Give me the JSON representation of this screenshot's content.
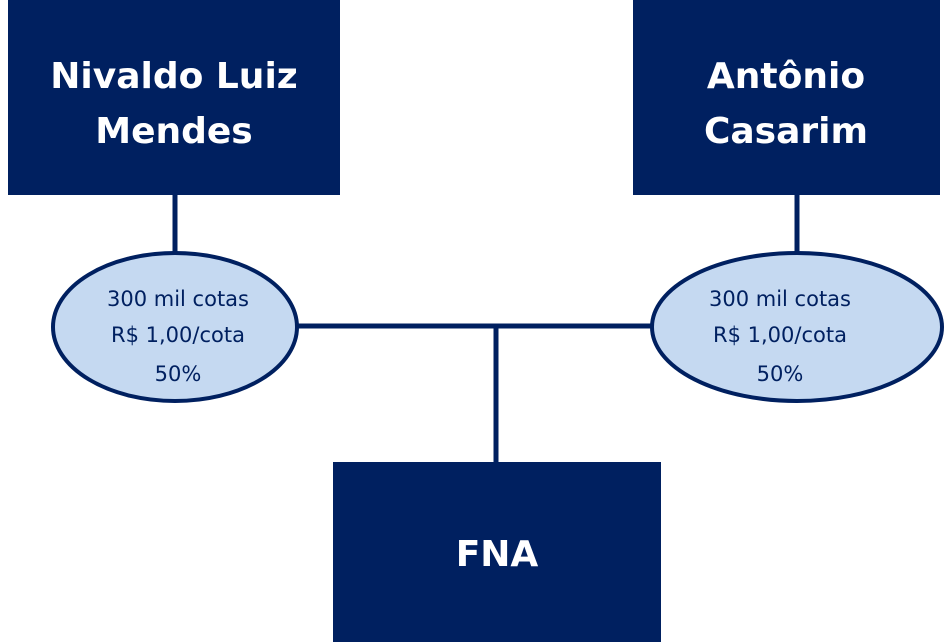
{
  "nodes": [
    {
      "lines": [
        "Nivaldo Luiz",
        "Mendes"
      ]
    },
    {
      "lines": [
        "Antônio",
        "Casarim"
      ]
    },
    {
      "lines": [
        "FNA"
      ]
    }
  ],
  "holdings": [
    {
      "lines": [
        "300 mil cotas",
        "R$ 1,00/cota",
        "50%"
      ]
    },
    {
      "lines": [
        "300 mil cotas",
        "R$ 1,00/cota",
        "50%"
      ]
    }
  ]
}
